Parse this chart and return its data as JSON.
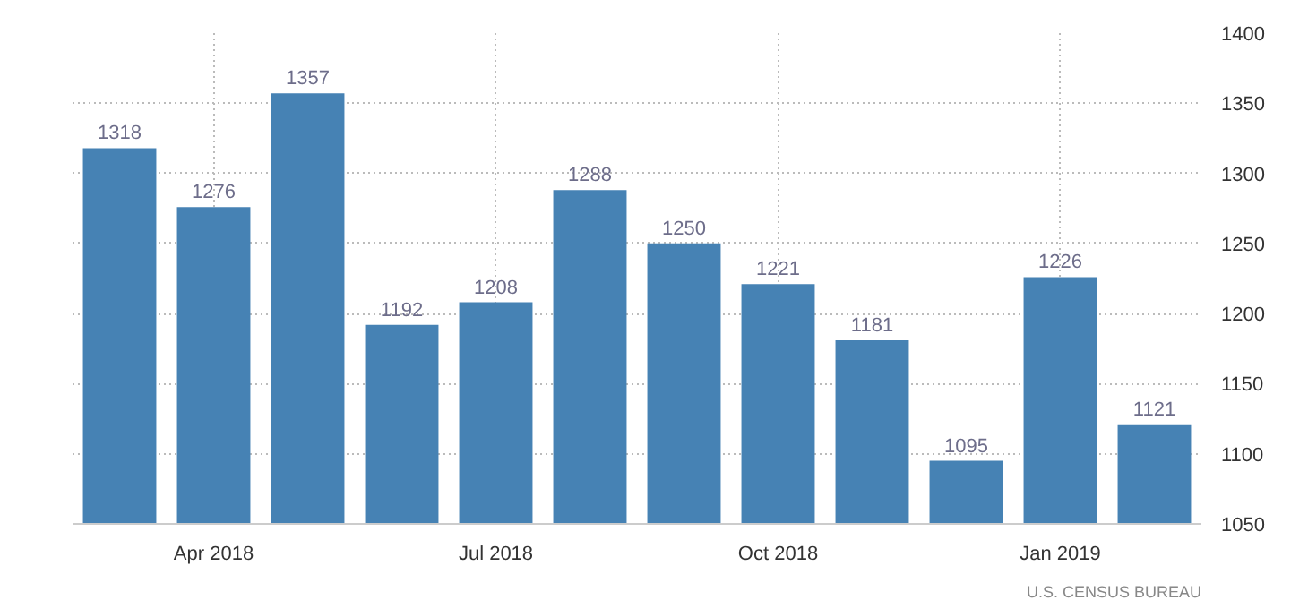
{
  "chart_data": {
    "type": "bar",
    "categories": [
      null,
      "Apr 2018",
      null,
      null,
      "Jul 2018",
      null,
      null,
      "Oct 2018",
      null,
      null,
      "Jan 2019",
      null
    ],
    "values": [
      1318,
      1276,
      1357,
      1192,
      1208,
      1288,
      1250,
      1221,
      1181,
      1095,
      1226,
      1121
    ],
    "color": "#4682b4",
    "ylim": [
      1050,
      1400
    ],
    "yticks": [
      1050,
      1100,
      1150,
      1200,
      1250,
      1300,
      1350,
      1400
    ],
    "grid": true,
    "data_labels": true,
    "annotations": [
      "U.S. CENSUS BUREAU"
    ]
  }
}
